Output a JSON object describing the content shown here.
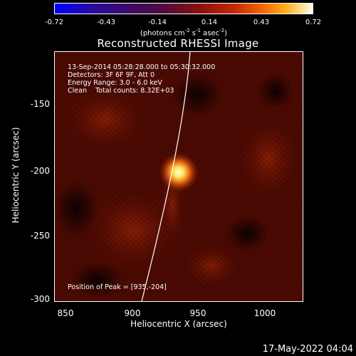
{
  "colorbar": {
    "ticks": [
      "-0.72",
      "-0.43",
      "-0.14",
      "0.14",
      "0.43",
      "0.72"
    ],
    "unit_prefix": "(photons cm",
    "unit_exp1": "-2",
    "unit_mid1": " s",
    "unit_exp2": "-1",
    "unit_mid2": " asec",
    "unit_exp3": "-2",
    "unit_suffix": ")"
  },
  "title": "Reconstructed RHESSI Image",
  "info": {
    "time_range": "13-Sep-2014 05:28:28.000 to 05:30:32.000",
    "detectors": "Detectors: 3F 6F 9F, Att 0",
    "energy": "Energy Range: 3.0 - 6.0 keV",
    "clean": "Clean    Total counts: 8.32E+03",
    "peak": "Position of Peak = [935,-204]"
  },
  "axes": {
    "xlabel": "Heliocentric X (arcsec)",
    "ylabel": "Heliocentric Y (arcsec)",
    "xticks": [
      "850",
      "900",
      "950",
      "1000"
    ],
    "yticks": [
      "-150",
      "-200",
      "-250",
      "-300"
    ]
  },
  "timestamp": "17-May-2022 04:04",
  "colors": {
    "background": "#000000",
    "limb": "#ffffff"
  }
}
